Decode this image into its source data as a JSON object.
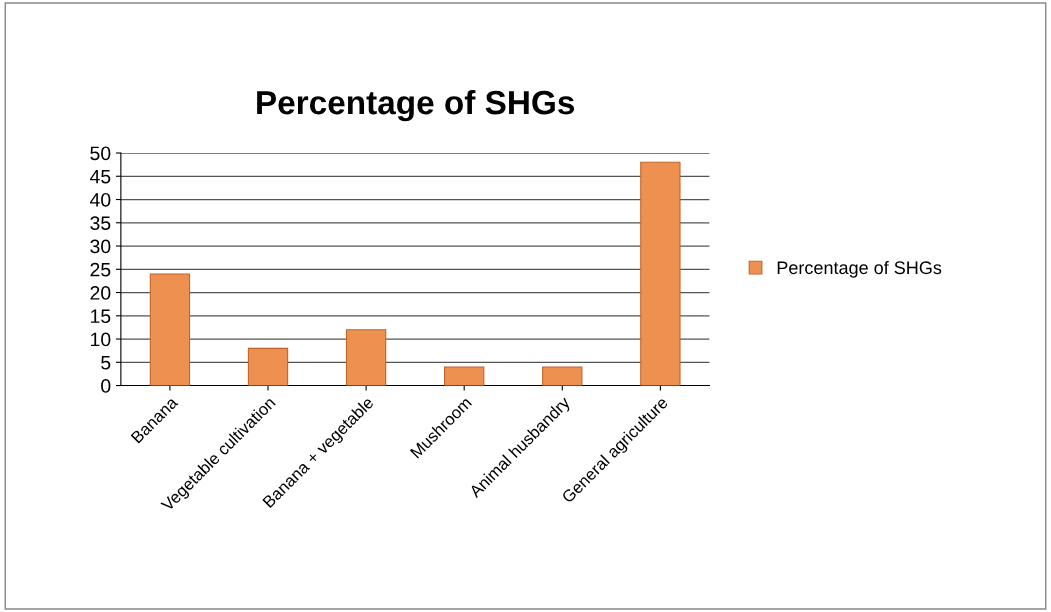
{
  "chart_data": {
    "type": "bar",
    "title": "Percentage of SHGs",
    "categories": [
      "Banana",
      "Vegetable cultivation",
      "Banana + vegetable",
      "Mushroom",
      "Animal husbandry",
      "General agriculture"
    ],
    "series": [
      {
        "name": "Percentage of SHGs",
        "color": "#ee9150",
        "values": [
          24,
          8,
          12,
          4,
          4,
          48
        ]
      }
    ],
    "ylim": [
      0,
      50
    ],
    "yticks": [
      0,
      5,
      10,
      15,
      20,
      25,
      30,
      35,
      40,
      45,
      50
    ],
    "grid": "y",
    "legend": "right"
  }
}
